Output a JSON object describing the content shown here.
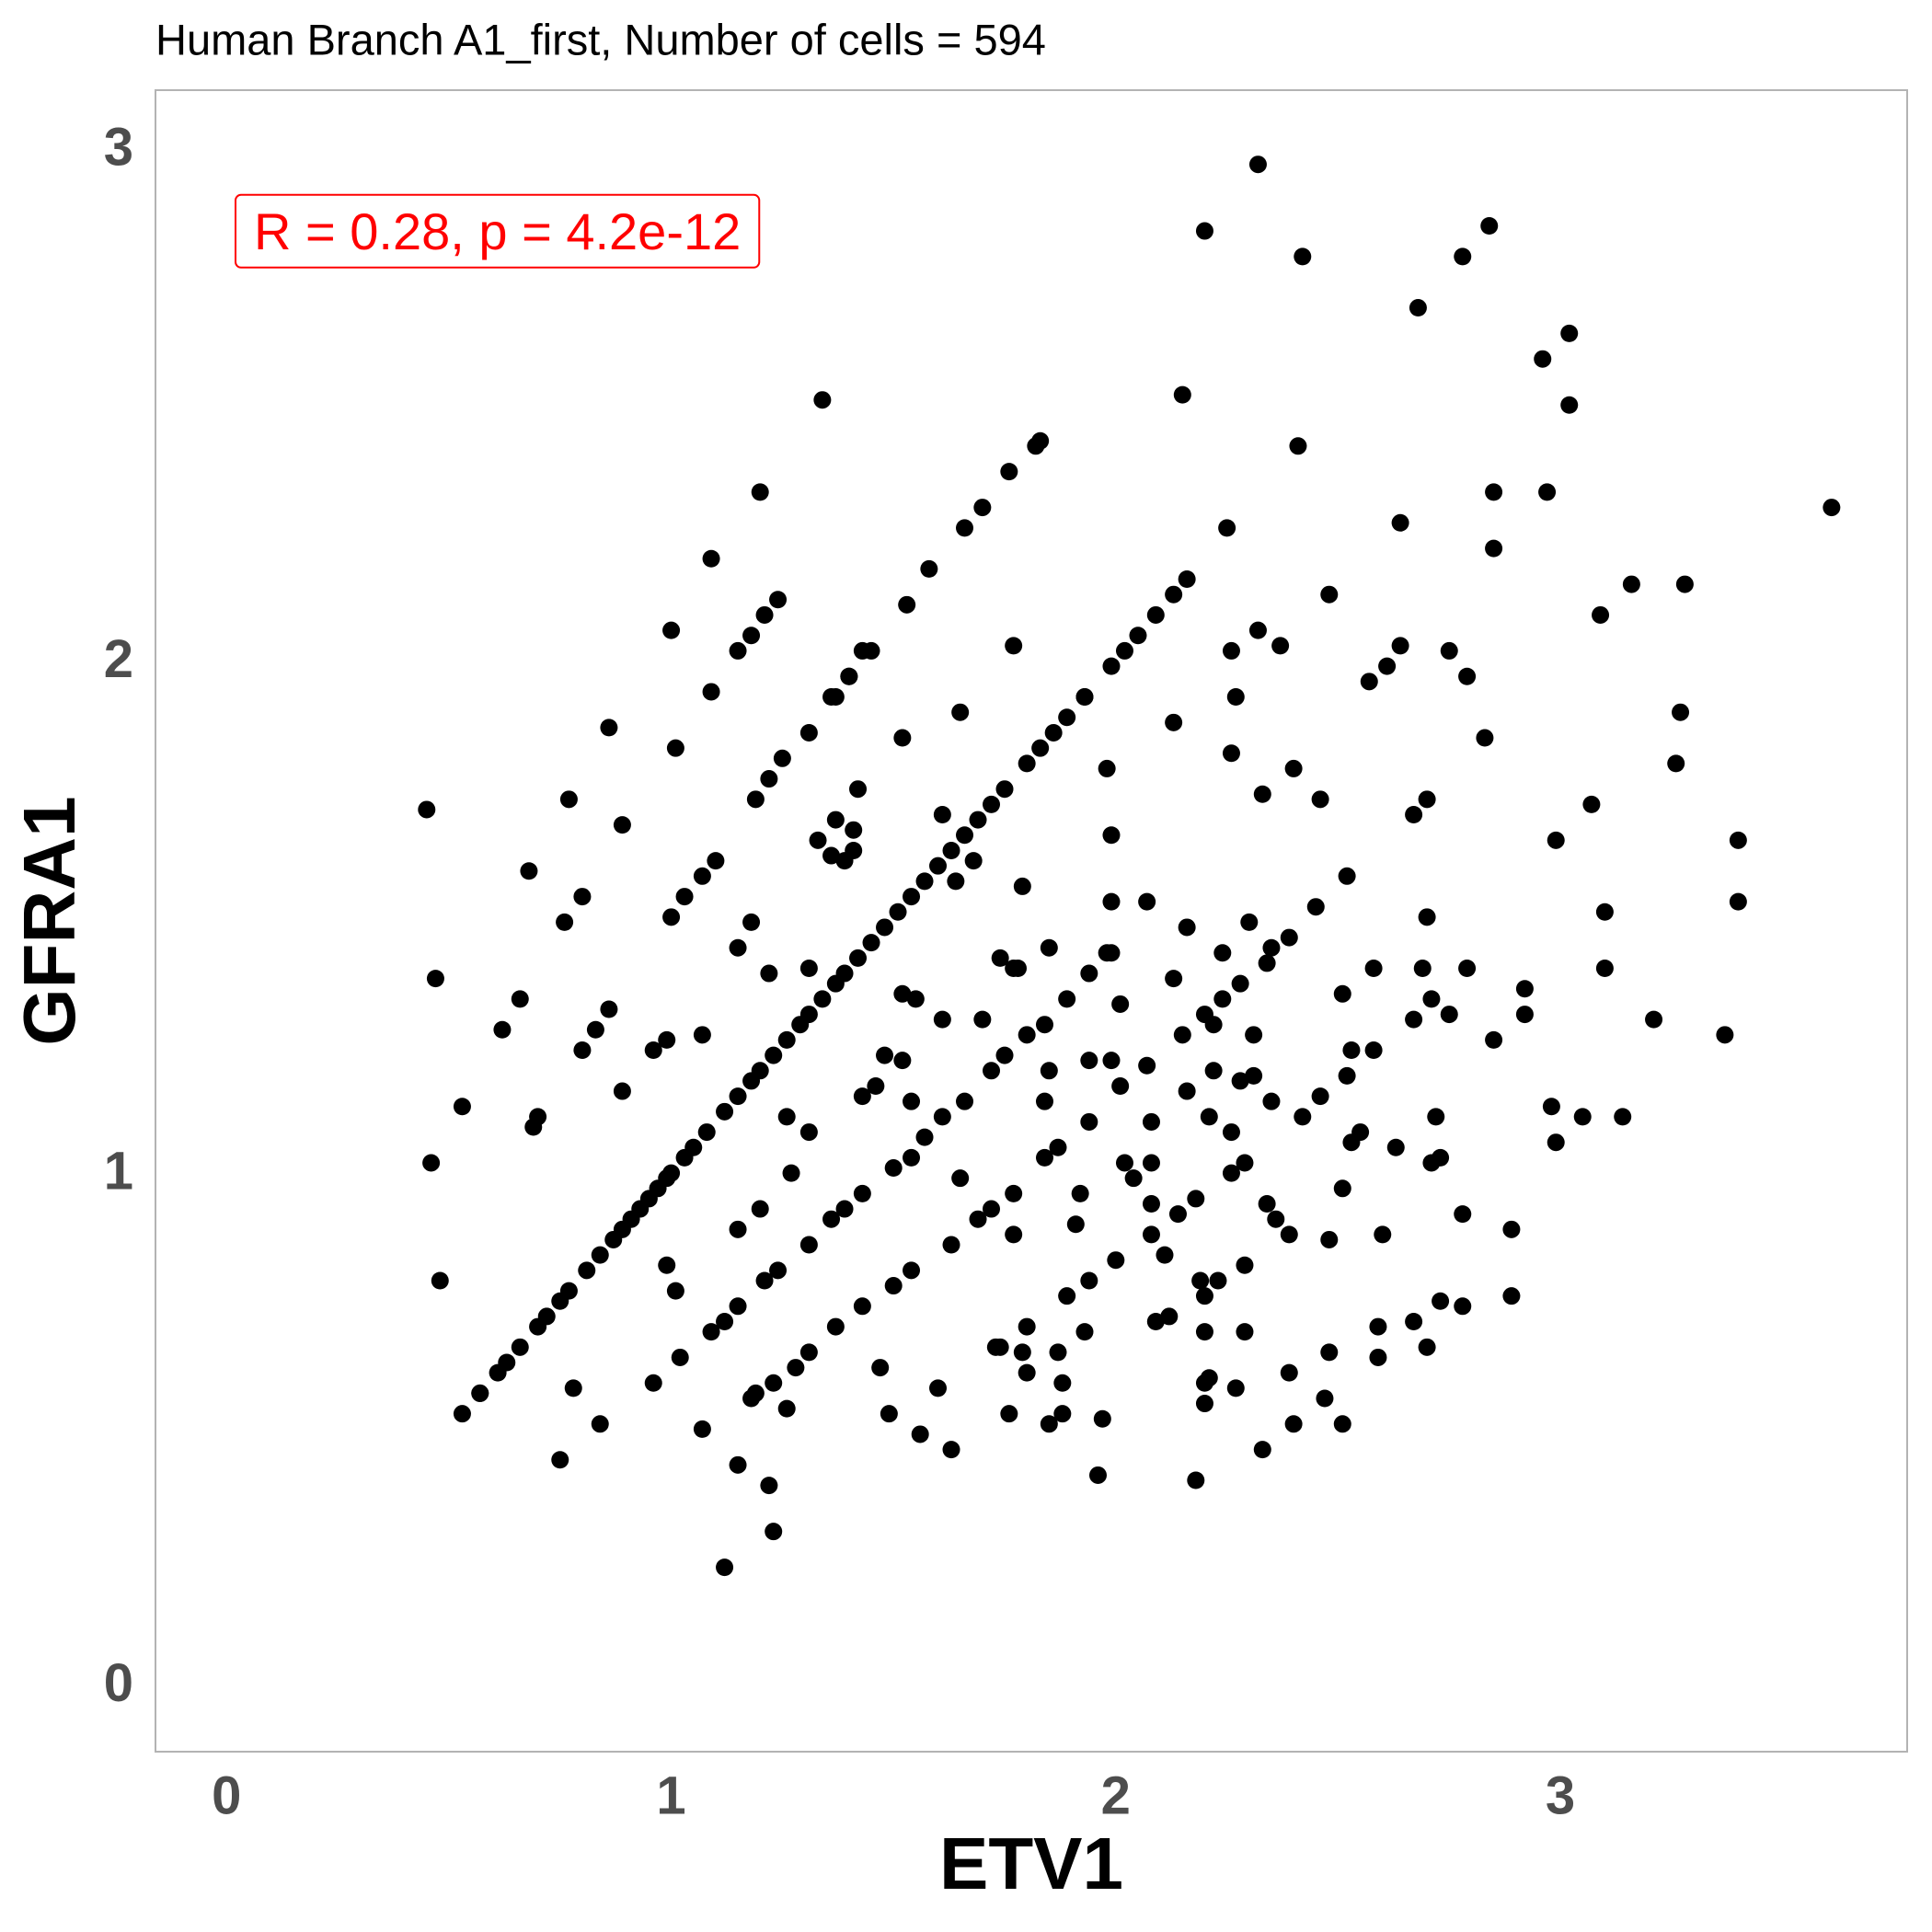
{
  "chart_data": {
    "type": "scatter",
    "title": "Human Branch A1_first, Number of cells = 594",
    "xlabel": "ETV1",
    "ylabel": "GFRA1",
    "annotation": "R = 0.28, p = 4.2e-12",
    "annotation_color": "#ff0000",
    "color": "#000000",
    "grid": false,
    "xlim": [
      -0.16,
      3.78
    ],
    "ylim": [
      -0.13,
      3.115
    ],
    "xticks": [
      0,
      1,
      2,
      3
    ],
    "yticks": [
      0,
      1,
      2,
      3
    ],
    "x": [
      0.53,
      0.57,
      0.61,
      0.63,
      0.66,
      0.7,
      0.72,
      0.75,
      0.77,
      0.81,
      0.84,
      0.87,
      0.89,
      0.91,
      0.93,
      0.95,
      0.97,
      0.99,
      1.0,
      1.03,
      1.05,
      1.08,
      1.12,
      1.15,
      1.18,
      1.2,
      1.23,
      1.26,
      1.29,
      1.31,
      1.34,
      1.37,
      1.39,
      1.42,
      1.45,
      1.48,
      1.51,
      1.54,
      1.57,
      1.6,
      1.63,
      1.66,
      1.69,
      1.72,
      1.75,
      1.8,
      1.83,
      1.86,
      1.89,
      1.93,
      1.99,
      2.02,
      2.05,
      2.09,
      2.13,
      2.16,
      1.0,
      1.03,
      1.07,
      1.1,
      1.19,
      1.22,
      1.25,
      1.31,
      1.36,
      1.4,
      1.43,
      1.83,
      1.82,
      1.09,
      1.12,
      1.15,
      1.21,
      1.24,
      1.31,
      1.36,
      1.39,
      1.43,
      1.5,
      1.54,
      1.57,
      1.61,
      1.66,
      1.72,
      1.75,
      1.8,
      1.84,
      1.89,
      1.94,
      1.98,
      2.07,
      1.68,
      1.64,
      1.46,
      1.43,
      1.19,
      1.28,
      1.31,
      1.37,
      1.43,
      1.5,
      1.54,
      1.63,
      1.69,
      1.72,
      1.77,
      1.84,
      1.87,
      1.94,
      2.01,
      2.07,
      2.15,
      2.2,
      2.24,
      2.28,
      2.35,
      2.39,
      2.45,
      2.52,
      0.45,
      0.47,
      0.46,
      0.48,
      0.53,
      0.57,
      0.68,
      0.66,
      0.62,
      0.69,
      0.7,
      0.77,
      0.76,
      0.8,
      0.8,
      0.83,
      0.86,
      0.89,
      0.89,
      0.86,
      0.78,
      0.75,
      0.84,
      0.96,
      0.96,
      0.99,
      1.0,
      1.01,
      0.99,
      1.01,
      1.02,
      1.07,
      1.09,
      1.09,
      1.07,
      1.12,
      1.15,
      1.15,
      1.15,
      1.18,
      1.18,
      1.2,
      1.2,
      1.15,
      1.18,
      1.21,
      1.24,
      1.22,
      1.22,
      1.23,
      1.23,
      1.26,
      1.26,
      1.27,
      1.31,
      1.31,
      1.34,
      1.33,
      1.37,
      1.36,
      1.39,
      1.41,
      1.41,
      1.42,
      1.37,
      1.4,
      1.45,
      1.47,
      1.48,
      1.49,
      1.52,
      1.52,
      1.53,
      1.52,
      1.55,
      1.54,
      1.56,
      1.58,
      1.6,
      1.61,
      1.61,
      1.63,
      1.65,
      1.65,
      1.66,
      1.7,
      1.76,
      1.7,
      1.74,
      1.74,
      1.73,
      1.8,
      1.79,
      1.8,
      1.76,
      1.77,
      1.77,
      1.79,
      1.77,
      1.78,
      1.85,
      1.85,
      1.84,
      1.85,
      1.87,
      1.88,
      1.88,
      1.89,
      1.91,
      1.92,
      1.93,
      1.93,
      1.94,
      1.94,
      1.96,
      1.97,
      1.98,
      1.99,
      1.99,
      1.99,
      1.99,
      2.01,
      2.0,
      2.02,
      2.04,
      2.08,
      2.08,
      2.08,
      2.08,
      2.09,
      2.11,
      2.12,
      2.13,
      2.13,
      2.14,
      2.15,
      2.16,
      2.16,
      2.18,
      2.18,
      2.19,
      2.2,
      2.2,
      2.2,
      2.2,
      2.2,
      2.21,
      2.22,
      2.22,
      2.21,
      2.23,
      2.24,
      2.25,
      2.26,
      2.26,
      2.27,
      2.26,
      2.26,
      2.27,
      2.28,
      2.29,
      2.29,
      2.29,
      2.3,
      2.31,
      2.31,
      2.32,
      2.32,
      2.33,
      2.33,
      2.34,
      2.34,
      2.36,
      2.35,
      2.37,
      2.39,
      2.39,
      2.4,
      2.4,
      2.42,
      2.42,
      2.41,
      2.46,
      2.46,
      2.47,
      2.48,
      2.48,
      2.48,
      2.51,
      2.51,
      2.51,
      2.52,
      2.53,
      2.53,
      2.55,
      2.57,
      2.58,
      2.58,
      2.59,
      2.59,
      2.6,
      2.61,
      2.64,
      2.64,
      2.63,
      2.67,
      2.67,
      2.67,
      2.68,
      2.69,
      2.7,
      2.7,
      2.7,
      2.71,
      2.71,
      2.72,
      2.73,
      2.73,
      2.75,
      2.75,
      2.78,
      2.79,
      2.78,
      2.79,
      2.78,
      2.83,
      2.84,
      2.85,
      2.85,
      2.85,
      2.89,
      2.89,
      2.92,
      2.92,
      2.96,
      2.97,
      2.98,
      2.99,
      2.99,
      3.02,
      3.02,
      3.05,
      3.07,
      3.09,
      3.1,
      3.1,
      3.14,
      3.16,
      3.21,
      3.26,
      3.27,
      3.28,
      3.37,
      3.4,
      3.4,
      3.61
    ],
    "values": [
      0.53,
      0.57,
      0.61,
      0.63,
      0.66,
      0.7,
      0.72,
      0.75,
      0.77,
      0.81,
      0.84,
      0.87,
      0.89,
      0.91,
      0.93,
      0.95,
      0.97,
      0.99,
      1.0,
      1.03,
      1.05,
      1.08,
      1.12,
      1.15,
      1.18,
      1.2,
      1.23,
      1.26,
      1.29,
      1.31,
      1.34,
      1.37,
      1.39,
      1.42,
      1.45,
      1.48,
      1.51,
      1.54,
      1.57,
      1.6,
      1.63,
      1.66,
      1.69,
      1.72,
      1.75,
      1.8,
      1.83,
      1.86,
      1.89,
      1.93,
      1.99,
      2.02,
      2.05,
      2.09,
      2.13,
      2.16,
      1.5,
      1.54,
      1.58,
      1.61,
      1.73,
      1.77,
      1.81,
      1.86,
      1.93,
      1.97,
      2.02,
      2.43,
      2.42,
      0.69,
      0.71,
      0.74,
      0.79,
      0.81,
      0.86,
      0.91,
      0.93,
      0.96,
      1.01,
      1.03,
      1.07,
      1.11,
      1.14,
      1.2,
      1.23,
      1.27,
      1.29,
      1.34,
      1.39,
      1.43,
      1.53,
      1.61,
      1.57,
      1.17,
      1.15,
      0.57,
      0.62,
      0.65,
      0.7,
      0.74,
      0.78,
      0.81,
      0.86,
      0.91,
      0.93,
      0.96,
      1.03,
      1.05,
      1.1,
      1.17,
      1.21,
      1.27,
      1.31,
      1.34,
      1.37,
      1.44,
      1.46,
      1.52,
      1.58,
      1.71,
      1.38,
      1.02,
      0.79,
      1.13,
      0.57,
      1.59,
      1.34,
      1.28,
      1.09,
      1.11,
      1.73,
      1.49,
      1.54,
      1.24,
      1.28,
      1.87,
      1.68,
      1.16,
      1.32,
      0.58,
      0.44,
      0.51,
      0.59,
      1.24,
      1.26,
      2.06,
      1.83,
      0.82,
      0.77,
      0.64,
      1.27,
      2.2,
      1.94,
      0.5,
      0.23,
      0.43,
      0.89,
      1.44,
      1.49,
      0.56,
      0.93,
      2.33,
      2.02,
      2.05,
      2.09,
      2.12,
      1.39,
      0.39,
      0.3,
      0.59,
      0.54,
      1.11,
      1.0,
      1.08,
      1.4,
      2.51,
      1.65,
      1.69,
      1.62,
      1.61,
      1.63,
      1.67,
      1.75,
      1.93,
      1.97,
      2.02,
      0.62,
      1.23,
      0.53,
      1.22,
      1.85,
      2.11,
      1.35,
      1.34,
      1.14,
      0.49,
      2.18,
      0.58,
      1.7,
      1.3,
      0.46,
      1.9,
      0.99,
      2.26,
      2.3,
      2.37,
      1.3,
      1.42,
      0.66,
      0.66,
      0.7,
      0.65,
      0.61,
      0.53,
      0.88,
      2.03,
      1.56,
      1.4,
      1.4,
      1.44,
      1.2,
      1.14,
      0.51,
      0.65,
      0.59,
      0.53,
      0.76,
      0.9,
      0.96,
      1.93,
      0.69,
      0.79,
      1.22,
      0.41,
      0.52,
      1.79,
      1.43,
      1.66,
      1.53,
      1.22,
      1.33,
      0.83,
      1.02,
      0.99,
      0.94,
      1.1,
      1.02,
      0.88,
      0.71,
      0.84,
      0.72,
      1.88,
      1.38,
      0.92,
      2.52,
      1.48,
      1.16,
      0.95,
      0.4,
      0.79,
      0.76,
      0.69,
      2.84,
      0.55,
      0.59,
      0.6,
      1.29,
      1.2,
      1.11,
      0.79,
      1.43,
      2.26,
      2.02,
      1.82,
      1.93,
      1.0,
      1.08,
      0.58,
      1.18,
      1.02,
      0.69,
      0.82,
      1.49,
      1.27,
      1.19,
      2.06,
      2.97,
      0.46,
      1.74,
      1.41,
      0.94,
      0.91,
      1.14,
      2.03,
      0.88,
      0.61,
      1.79,
      0.51,
      1.11,
      2.79,
      2.42,
      1.73,
      1.15,
      0.56,
      0.65,
      0.87,
      2.13,
      1.35,
      0.51,
      0.97,
      1.19,
      1.24,
      1.06,
      1.08,
      1.96,
      1.24,
      1.4,
      0.7,
      0.64,
      0.88,
      1.99,
      2.27,
      2.03,
      1.05,
      1.3,
      0.71,
      1.7,
      2.69,
      1.4,
      0.66,
      1.73,
      1.5,
      1.34,
      1.02,
      1.11,
      1.03,
      0.75,
      2.02,
      1.31,
      2.79,
      1.4,
      0.74,
      1.97,
      0.92,
      1.85,
      2.85,
      2.33,
      1.26,
      2.22,
      0.89,
      0.76,
      1.36,
      1.31,
      2.59,
      2.33,
      1.13,
      1.06,
      1.65,
      2.64,
      2.5,
      1.11,
      1.72,
      2.09,
      1.51,
      1.4,
      1.11,
      2.15,
      1.3,
      1.8,
      1.9,
      2.15,
      1.27,
      1.53,
      1.65,
      2.3
    ]
  }
}
